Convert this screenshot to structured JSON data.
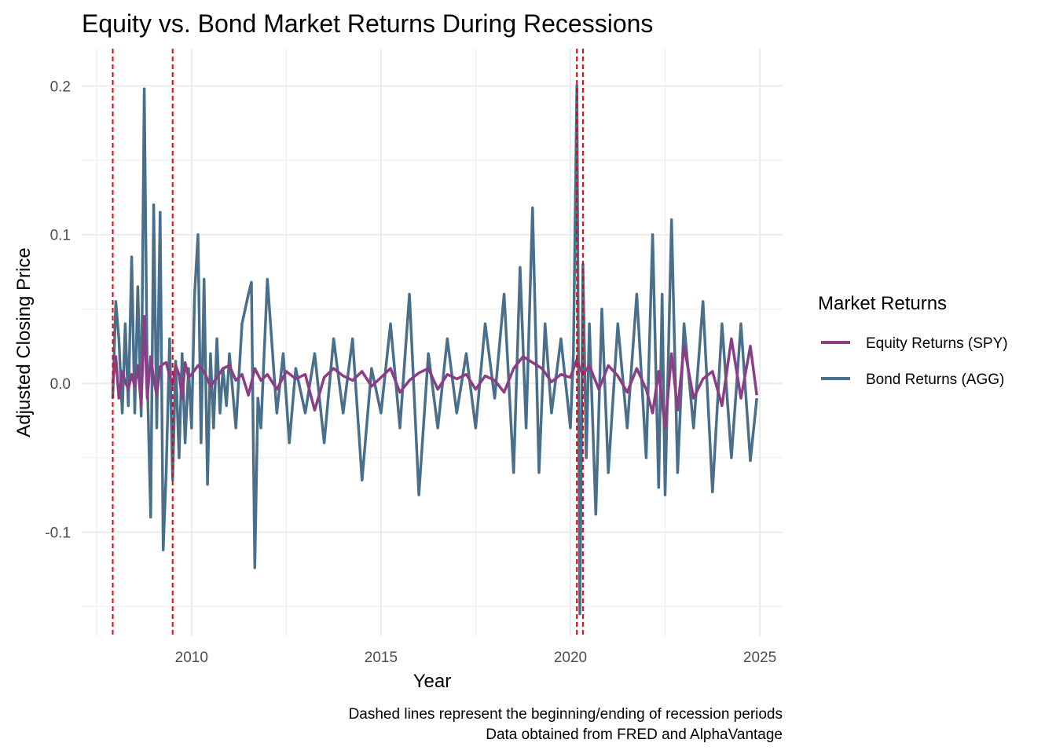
{
  "chart_data": {
    "type": "line",
    "title": "Equity vs. Bond Market Returns During Recessions",
    "xlabel": "Year",
    "ylabel": "Adjusted Closing Price",
    "xlim": [
      2007.1,
      2025.6
    ],
    "ylim": [
      -0.17,
      0.225
    ],
    "x_ticks": [
      2010,
      2015,
      2020,
      2025
    ],
    "x_tick_labels": [
      "2010",
      "2015",
      "2020",
      "2025"
    ],
    "y_ticks": [
      -0.1,
      0.0,
      0.1,
      0.2
    ],
    "y_tick_labels": [
      "-0.1",
      "0.0",
      "0.1",
      "0.2"
    ],
    "grid": true,
    "legend": {
      "title": "Market Returns",
      "placement": "right",
      "entries": [
        "Equity Returns (SPY)",
        "Bond Returns (AGG)"
      ]
    },
    "recession_lines": [
      2007.92,
      2009.5,
      2020.17,
      2020.33
    ],
    "caption": [
      "Dashed lines represent the beginning/ending of recession periods",
      "Data obtained from FRED and AlphaVantage"
    ],
    "colors": {
      "equity": "#8b3d85",
      "bond": "#4a6f8a",
      "recession": "#e8000b",
      "grid": "#ebebeb"
    },
    "series": [
      {
        "name": "Equity Returns (SPY)",
        "x": [
          2007.92,
          2008.0,
          2008.08,
          2008.17,
          2008.25,
          2008.33,
          2008.42,
          2008.5,
          2008.58,
          2008.67,
          2008.75,
          2008.83,
          2008.92,
          2009.0,
          2009.08,
          2009.17,
          2009.25,
          2009.33,
          2009.42,
          2009.5,
          2009.58,
          2009.67,
          2009.75,
          2009.83,
          2009.92,
          2010.0,
          2010.17,
          2010.33,
          2010.5,
          2010.67,
          2010.83,
          2011.0,
          2011.17,
          2011.33,
          2011.5,
          2011.67,
          2011.83,
          2012.0,
          2012.25,
          2012.5,
          2012.75,
          2013.0,
          2013.25,
          2013.5,
          2013.75,
          2014.0,
          2014.25,
          2014.5,
          2014.75,
          2015.0,
          2015.25,
          2015.5,
          2015.75,
          2016.0,
          2016.25,
          2016.5,
          2016.75,
          2017.0,
          2017.25,
          2017.5,
          2017.75,
          2018.0,
          2018.25,
          2018.5,
          2018.75,
          2019.0,
          2019.25,
          2019.5,
          2019.75,
          2020.0,
          2020.17,
          2020.25,
          2020.33,
          2020.5,
          2020.75,
          2021.0,
          2021.25,
          2021.5,
          2021.75,
          2022.0,
          2022.17,
          2022.33,
          2022.5,
          2022.67,
          2022.83,
          2023.0,
          2023.25,
          2023.5,
          2023.75,
          2024.0,
          2024.25,
          2024.5,
          2024.75,
          2024.92
        ],
        "values": [
          0.0,
          0.018,
          -0.01,
          0.008,
          0.001,
          -0.004,
          0.006,
          -0.002,
          0.012,
          -0.015,
          0.045,
          -0.01,
          0.018,
          0.003,
          -0.008,
          0.011,
          0.013,
          0.014,
          0.005,
          -0.001,
          0.012,
          0.006,
          -0.01,
          0.014,
          0.004,
          0.006,
          0.012,
          0.008,
          -0.002,
          0.004,
          0.01,
          0.012,
          0.002,
          0.006,
          -0.008,
          0.01,
          0.002,
          0.006,
          -0.004,
          0.008,
          0.003,
          0.006,
          -0.018,
          0.004,
          0.01,
          0.005,
          0.002,
          0.008,
          -0.002,
          0.004,
          0.01,
          -0.006,
          0.002,
          0.007,
          0.01,
          -0.004,
          0.006,
          0.003,
          0.006,
          -0.004,
          0.005,
          0.002,
          -0.006,
          0.01,
          0.018,
          0.014,
          0.01,
          0.001,
          0.006,
          0.004,
          0.016,
          0.01,
          0.006,
          0.012,
          -0.004,
          0.012,
          0.005,
          -0.006,
          0.01,
          -0.004,
          -0.02,
          0.008,
          -0.03,
          0.02,
          -0.018,
          0.025,
          -0.01,
          0.003,
          0.008,
          -0.015,
          0.03,
          -0.01,
          0.025,
          -0.008
        ]
      },
      {
        "name": "Bond Returns (AGG)",
        "x": [
          2007.92,
          2008.0,
          2008.08,
          2008.17,
          2008.25,
          2008.33,
          2008.42,
          2008.5,
          2008.58,
          2008.67,
          2008.75,
          2008.83,
          2008.92,
          2009.0,
          2009.08,
          2009.17,
          2009.25,
          2009.33,
          2009.42,
          2009.5,
          2009.58,
          2009.67,
          2009.75,
          2009.83,
          2009.92,
          2010.0,
          2010.08,
          2010.17,
          2010.25,
          2010.33,
          2010.42,
          2010.5,
          2010.58,
          2010.67,
          2010.75,
          2010.83,
          2010.92,
          2011.0,
          2011.17,
          2011.33,
          2011.5,
          2011.58,
          2011.67,
          2011.75,
          2011.83,
          2012.0,
          2012.25,
          2012.42,
          2012.58,
          2012.75,
          2013.0,
          2013.25,
          2013.5,
          2013.75,
          2014.0,
          2014.25,
          2014.5,
          2014.75,
          2015.0,
          2015.25,
          2015.5,
          2015.75,
          2016.0,
          2016.25,
          2016.5,
          2016.75,
          2017.0,
          2017.25,
          2017.5,
          2017.75,
          2018.0,
          2018.25,
          2018.5,
          2018.67,
          2018.83,
          2019.0,
          2019.17,
          2019.33,
          2019.5,
          2019.75,
          2020.0,
          2020.08,
          2020.17,
          2020.25,
          2020.33,
          2020.42,
          2020.5,
          2020.67,
          2020.83,
          2021.0,
          2021.25,
          2021.5,
          2021.75,
          2022.0,
          2022.17,
          2022.33,
          2022.42,
          2022.5,
          2022.67,
          2022.83,
          2023.0,
          2023.25,
          2023.5,
          2023.75,
          2024.0,
          2024.25,
          2024.5,
          2024.75,
          2024.92
        ],
        "values": [
          -0.01,
          0.055,
          0.03,
          -0.02,
          0.04,
          -0.015,
          0.085,
          -0.02,
          0.065,
          -0.022,
          0.198,
          0.005,
          -0.09,
          0.12,
          -0.03,
          0.115,
          -0.112,
          -0.06,
          0.03,
          -0.065,
          0.015,
          -0.05,
          0.02,
          -0.04,
          0.01,
          -0.03,
          0.06,
          0.1,
          -0.04,
          0.07,
          -0.068,
          0.02,
          -0.03,
          0.03,
          -0.02,
          0.01,
          -0.015,
          0.02,
          -0.03,
          0.04,
          0.06,
          0.068,
          -0.124,
          -0.01,
          -0.03,
          0.07,
          -0.02,
          0.02,
          -0.04,
          0.01,
          -0.02,
          0.02,
          -0.04,
          0.03,
          -0.02,
          0.03,
          -0.065,
          0.01,
          -0.02,
          0.04,
          -0.03,
          0.06,
          -0.075,
          0.02,
          -0.03,
          0.03,
          -0.02,
          0.02,
          -0.03,
          0.04,
          -0.01,
          0.06,
          -0.06,
          0.078,
          -0.03,
          0.118,
          -0.06,
          0.04,
          -0.02,
          0.03,
          -0.03,
          0.02,
          0.2,
          -0.155,
          0.08,
          -0.05,
          0.04,
          -0.088,
          0.05,
          -0.06,
          0.04,
          -0.03,
          0.06,
          -0.05,
          0.1,
          -0.07,
          0.06,
          -0.075,
          0.11,
          -0.06,
          0.04,
          -0.03,
          0.055,
          -0.073,
          0.04,
          -0.05,
          0.04,
          -0.052,
          -0.01
        ]
      }
    ]
  }
}
